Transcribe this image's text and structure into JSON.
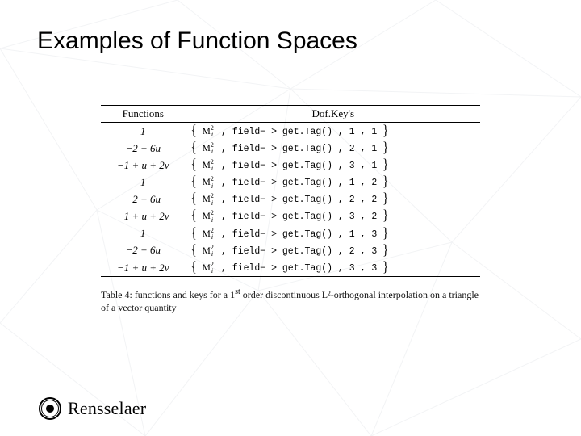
{
  "title": "Examples of Function Spaces",
  "table": {
    "headers": {
      "col1": "Functions",
      "col2": "Dof.Key's"
    },
    "m_symbol_base": "M",
    "m_symbol_sup": "2",
    "m_symbol_sub": "i",
    "field_expr": "field− > get.Tag()",
    "rows": [
      {
        "func": "1",
        "idx1": "1",
        "idx2": "1"
      },
      {
        "func": "−2 + 6u",
        "idx1": "2",
        "idx2": "1"
      },
      {
        "func": "−1 + u + 2v",
        "idx1": "3",
        "idx2": "1"
      },
      {
        "func": "1",
        "idx1": "1",
        "idx2": "2"
      },
      {
        "func": "−2 + 6u",
        "idx1": "2",
        "idx2": "2"
      },
      {
        "func": "−1 + u + 2v",
        "idx1": "3",
        "idx2": "2"
      },
      {
        "func": "1",
        "idx1": "1",
        "idx2": "3"
      },
      {
        "func": "−2 + 6u",
        "idx1": "2",
        "idx2": "3"
      },
      {
        "func": "−1 + u + 2v",
        "idx1": "3",
        "idx2": "3"
      }
    ]
  },
  "caption_prefix": "Table 4: functions and keys for a 1",
  "caption_sup": "st",
  "caption_suffix": " order discontinuous L²-orthogonal interpolation on a triangle of a vector quantity",
  "wordmark": "Rensselaer",
  "colors": {
    "text": "#000000",
    "background": "#ffffff",
    "mesh_line": "#c9cfd6"
  }
}
